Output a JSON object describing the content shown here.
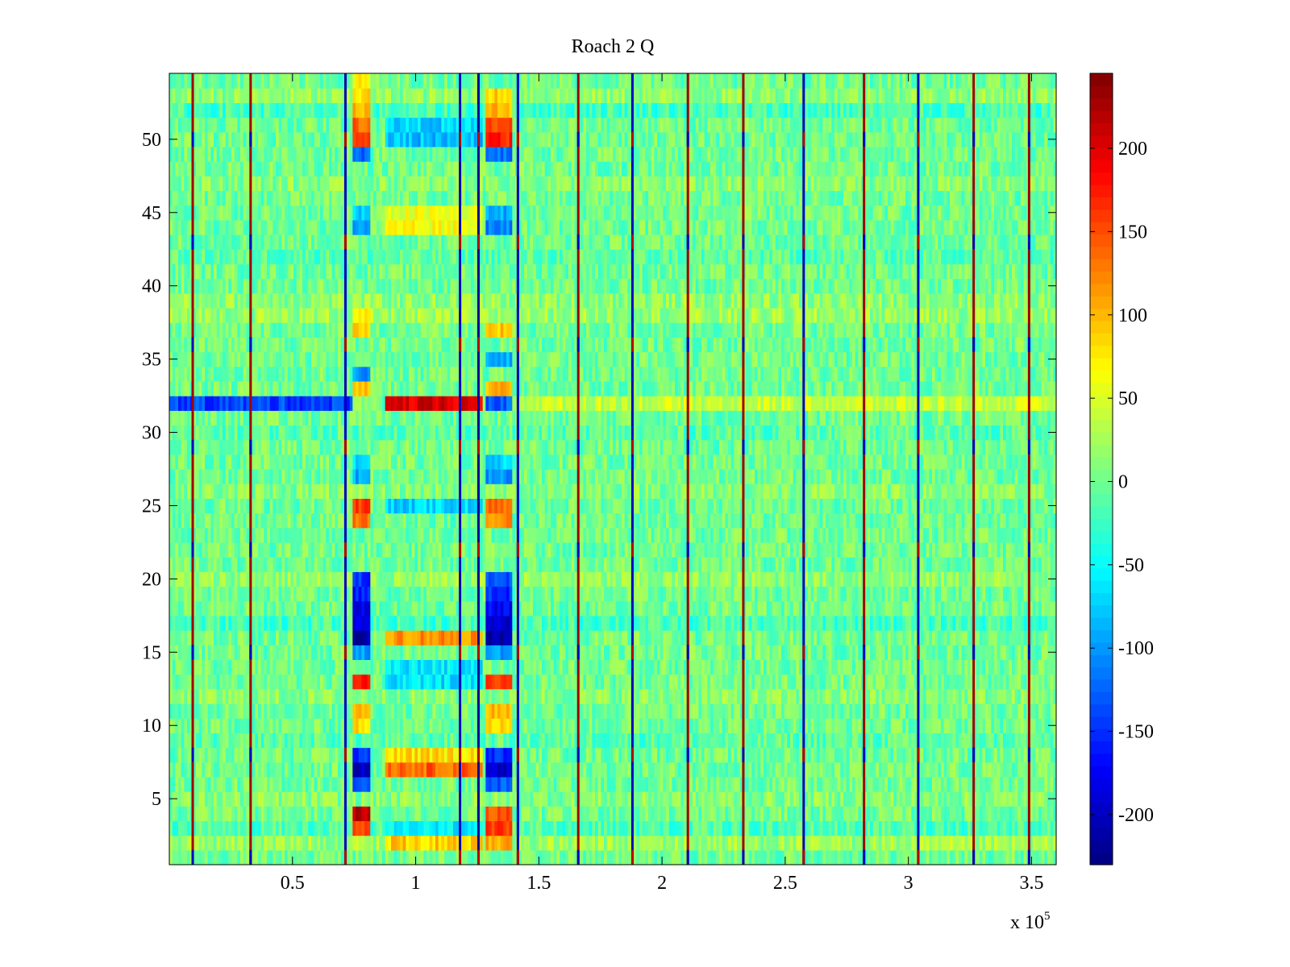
{
  "chart_data": {
    "type": "heatmap",
    "title": "Roach 2 Q",
    "xlabel": "",
    "ylabel": "",
    "x_scale_label": "x 10",
    "x_scale_exponent": "5",
    "xlim": [
      0,
      3.6
    ],
    "ylim": [
      0.5,
      54.5
    ],
    "n_rows": 54,
    "x_ticks": [
      0.5,
      1,
      1.5,
      2,
      2.5,
      3,
      3.5
    ],
    "x_tick_labels": [
      "0.5",
      "1",
      "1.5",
      "2",
      "2.5",
      "3",
      "3.5"
    ],
    "y_ticks": [
      5,
      10,
      15,
      20,
      25,
      30,
      35,
      40,
      45,
      50
    ],
    "y_tick_labels": [
      "5",
      "10",
      "15",
      "20",
      "25",
      "30",
      "35",
      "40",
      "45",
      "50"
    ],
    "colorbar": {
      "colormap": "jet",
      "clim": [
        -230,
        245
      ],
      "ticks": [
        -200,
        -150,
        -100,
        -50,
        0,
        50,
        100,
        150,
        200
      ],
      "tick_labels": [
        "-200",
        "-150",
        "-100",
        "-50",
        "0",
        "50",
        "100",
        "150",
        "200"
      ]
    },
    "background_value": 0,
    "noise_amplitude": 30,
    "vertical_lines": [
      {
        "x": 0.095,
        "value": 230
      },
      {
        "x": 0.33,
        "value": 230
      },
      {
        "x": 0.715,
        "value": -200
      },
      {
        "x": 1.18,
        "value": -200
      },
      {
        "x": 1.255,
        "value": -220
      },
      {
        "x": 1.415,
        "value": -200
      },
      {
        "x": 1.66,
        "value": 230
      },
      {
        "x": 1.88,
        "value": -200
      },
      {
        "x": 2.105,
        "value": 230
      },
      {
        "x": 2.33,
        "value": 230
      },
      {
        "x": 2.575,
        "value": -200
      },
      {
        "x": 2.82,
        "value": 230
      },
      {
        "x": 3.04,
        "value": -200
      },
      {
        "x": 3.265,
        "value": 230
      },
      {
        "x": 3.49,
        "value": 230
      }
    ],
    "row_features": [
      {
        "row": 32,
        "x0": 0,
        "x1": 0.75,
        "value": -140
      },
      {
        "row": 32,
        "x0": 0.75,
        "x1": 0.86,
        "value": 20
      },
      {
        "row": 32,
        "x0": 0.88,
        "x1": 1.27,
        "value": 200
      },
      {
        "row": 32,
        "x0": 1.29,
        "x1": 1.39,
        "value": -130
      },
      {
        "row": 32,
        "x0": 1.39,
        "x1": 3.6,
        "value": 40
      },
      {
        "row": 16,
        "x0": 0.88,
        "x1": 1.27,
        "value": 120
      },
      {
        "row": 7,
        "x0": 0.88,
        "x1": 1.27,
        "value": 140
      },
      {
        "row": 8,
        "x0": 0.88,
        "x1": 1.27,
        "value": 80
      },
      {
        "row": 50,
        "x0": 0.88,
        "x1": 1.27,
        "value": -80
      },
      {
        "row": 51,
        "x0": 0.88,
        "x1": 1.27,
        "value": -70
      },
      {
        "row": 25,
        "x0": 0.88,
        "x1": 1.27,
        "value": -70
      },
      {
        "row": 44,
        "x0": 0.88,
        "x1": 1.27,
        "value": 60
      },
      {
        "row": 45,
        "x0": 0.88,
        "x1": 1.27,
        "value": 55
      },
      {
        "row": 2,
        "x0": 0.88,
        "x1": 1.27,
        "value": 90
      },
      {
        "row": 3,
        "x0": 0.88,
        "x1": 1.27,
        "value": -60
      },
      {
        "row": 13,
        "x0": 0.88,
        "x1": 1.27,
        "value": -65
      },
      {
        "row": 14,
        "x0": 0.88,
        "x1": 1.27,
        "value": -60
      }
    ],
    "column_blocks": [
      {
        "x0": 0.74,
        "x1": 0.82,
        "rows": {
          "2": 30,
          "3": 160,
          "4": 220,
          "6": -130,
          "7": -200,
          "8": -150,
          "10": 80,
          "11": 100,
          "13": 170,
          "15": -100,
          "16": -210,
          "17": -190,
          "18": -180,
          "19": -160,
          "20": -150,
          "24": 130,
          "25": 160,
          "27": -90,
          "28": -70,
          "33": 100,
          "34": -100,
          "37": 90,
          "38": 70,
          "44": -90,
          "45": -70,
          "49": -120,
          "50": 160,
          "51": 140,
          "52": 100,
          "53": 80,
          "54": 70
        }
      },
      {
        "x0": 1.29,
        "x1": 1.39,
        "rows": {
          "2": 110,
          "3": 160,
          "4": 150,
          "6": -130,
          "7": -200,
          "8": -150,
          "10": 90,
          "11": 100,
          "13": 160,
          "15": -100,
          "16": -210,
          "17": -190,
          "18": -170,
          "19": -150,
          "20": -130,
          "24": 120,
          "25": 140,
          "27": -100,
          "28": -70,
          "33": 100,
          "35": -90,
          "37": 90,
          "44": -110,
          "45": -90,
          "49": -120,
          "50": 170,
          "51": 150,
          "52": 100,
          "53": 90
        }
      }
    ],
    "row_bias": {
      "2": 20,
      "3": -15,
      "5": 10,
      "9": -10,
      "12": 10,
      "17": -20,
      "20": 15,
      "26": 10,
      "30": -10,
      "38": 20,
      "39": 15,
      "42": -10,
      "47": 10,
      "52": -20,
      "53": 15
    }
  }
}
